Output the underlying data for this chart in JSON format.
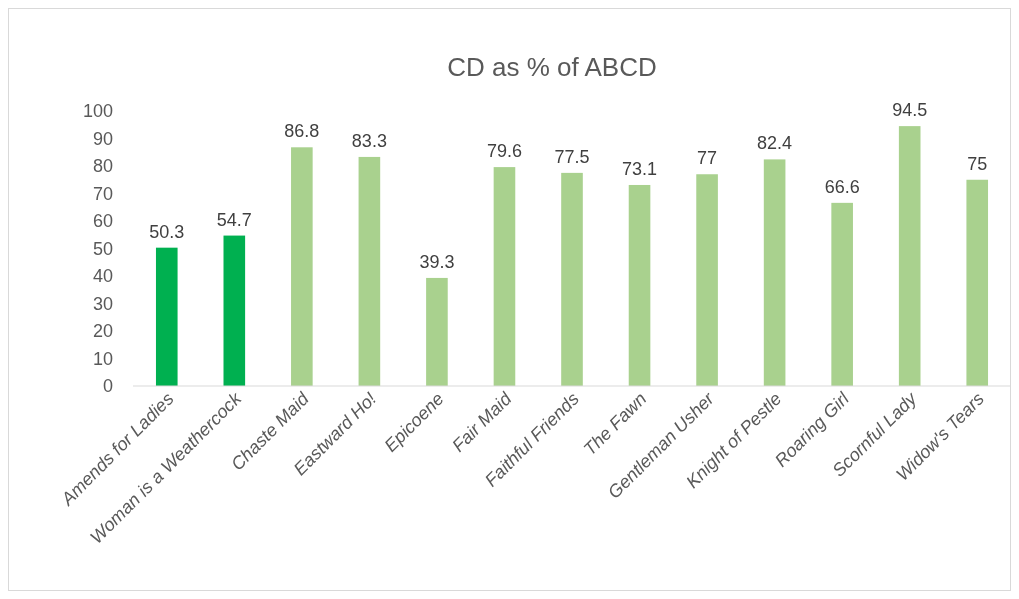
{
  "chart_data": {
    "type": "bar",
    "title": "CD as % of ABCD",
    "categories": [
      "Amends for Ladies",
      "Woman is a Weathercock",
      "Chaste Maid",
      "Eastward Ho!",
      "Epicoene",
      "Fair Maid",
      "Faithful Friends",
      "The Fawn",
      "Gentleman Usher",
      "Knight of Pestle",
      "Roaring Girl",
      "Scornful Lady",
      "Widow's Tears"
    ],
    "values": [
      50.3,
      54.7,
      86.8,
      83.3,
      39.3,
      79.6,
      77.5,
      73.1,
      77,
      82.4,
      66.6,
      94.5,
      75
    ],
    "colors": [
      "#00b050",
      "#00b050",
      "#a9d18e",
      "#a9d18e",
      "#a9d18e",
      "#a9d18e",
      "#a9d18e",
      "#a9d18e",
      "#a9d18e",
      "#a9d18e",
      "#a9d18e",
      "#a9d18e",
      "#a9d18e"
    ],
    "ylim": [
      0,
      100
    ],
    "yticks": [
      0,
      10,
      20,
      30,
      40,
      50,
      60,
      70,
      80,
      90,
      100
    ],
    "data_labels": true,
    "grid": false
  }
}
